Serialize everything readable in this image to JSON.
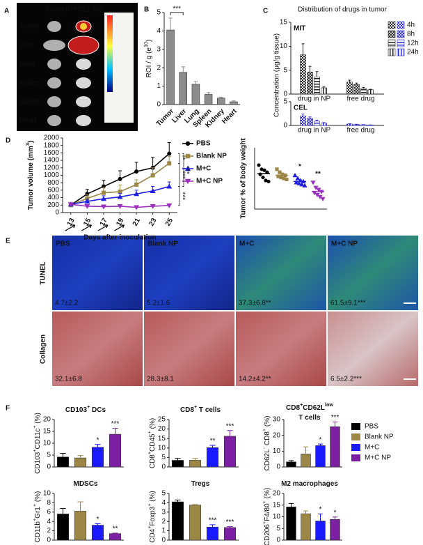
{
  "panel_labels": [
    "A",
    "B",
    "C",
    "D",
    "E",
    "F"
  ],
  "imaging": {
    "columns": [
      "Blank",
      "MIT+CEL NP"
    ],
    "organs": [
      "Tumor",
      "Liver",
      "Lung",
      "Kidney",
      "Spleen",
      "Heart"
    ]
  },
  "micrographs": {
    "columns": [
      "PBS",
      "Blank NP",
      "M+C",
      "M+C NP"
    ],
    "rows": [
      "TUNEL",
      "Collagen"
    ],
    "values": [
      [
        "4.7±2.2",
        "5.2±1.6",
        "37.3±6.8**",
        "61.5±9.1***"
      ],
      [
        "32.1±6.8",
        "28.3±8.1",
        "14.2±4.2**",
        "6.5±2.2***"
      ]
    ]
  },
  "f_legend": {
    "names": [
      "PBS",
      "Blank NP",
      "M+C",
      "M+C NP"
    ],
    "colors": [
      "#000000",
      "#9c8747",
      "#1a1aff",
      "#7d1fa3"
    ]
  },
  "chart_data": [
    {
      "type": "bar",
      "ylabel": [
        {
          "t": "ROI / g (e"
        },
        {
          "sup": "10"
        },
        {
          "t": ")"
        }
      ],
      "categories": [
        "Tumor",
        "Liver",
        "Lung",
        "Spleen",
        "Kidney",
        "Heart"
      ],
      "values": [
        4.05,
        1.75,
        1.1,
        0.55,
        0.35,
        0.15
      ],
      "errors": [
        0.65,
        0.3,
        0.15,
        0.1,
        0.05,
        0.05
      ],
      "color": "#8c8c8c",
      "ylim": [
        0,
        5
      ],
      "yticks": [
        0,
        1,
        2,
        3,
        4,
        5
      ],
      "annotation": "***"
    },
    {
      "type": "grouped_bar",
      "title": "Distribution of drugs in tumor",
      "ylabel": "Concentration (μg/g tissue)",
      "categories": [
        "drug in NP",
        "free drug"
      ],
      "series_names": [
        "4h",
        "8h",
        "12h",
        "24h"
      ],
      "panels": [
        {
          "label": "MIT",
          "color": "#222222",
          "ylim": [
            0,
            15
          ],
          "yticks": [
            0,
            5,
            10,
            15
          ],
          "series": [
            {
              "values": [
                8.2,
                2.5
              ],
              "errors": [
                2.3,
                0.4
              ]
            },
            {
              "values": [
                4.6,
                2.0
              ],
              "errors": [
                1.2,
                0.3
              ]
            },
            {
              "values": [
                3.6,
                1.2
              ],
              "errors": [
                1.1,
                0.2
              ]
            },
            {
              "values": [
                1.3,
                0.9
              ],
              "errors": [
                0.2,
                0.1
              ]
            }
          ]
        },
        {
          "label": "CEL",
          "color": "#2a2ad6",
          "ylim": [
            0,
            5
          ],
          "yticks": [
            0,
            5
          ],
          "series": [
            {
              "values": [
                2.0,
                0.3
              ],
              "errors": [
                0.4,
                0.05
              ]
            },
            {
              "values": [
                1.5,
                0.2
              ],
              "errors": [
                0.3,
                0.05
              ]
            },
            {
              "values": [
                0.9,
                0.15
              ],
              "errors": [
                0.2,
                0.03
              ]
            },
            {
              "values": [
                0.5,
                0.1
              ],
              "errors": [
                0.1,
                0.02
              ]
            }
          ]
        }
      ]
    },
    {
      "type": "line",
      "ylabel": [
        {
          "t": "Tumor volume (mm"
        },
        {
          "sup": "3"
        },
        {
          "t": ")"
        }
      ],
      "xlabel": "Days after inoculation",
      "x": [
        13,
        15,
        17,
        19,
        21,
        23,
        25
      ],
      "xlim": [
        12,
        26
      ],
      "xticks": [
        13,
        15,
        17,
        19,
        21,
        23,
        25
      ],
      "ylim": [
        0,
        2000
      ],
      "yticks": [
        0,
        200,
        400,
        600,
        800,
        1000,
        1200,
        1400,
        1600,
        1800,
        2000
      ],
      "series": [
        {
          "name": "PBS",
          "color": "#000000",
          "marker": "circle",
          "values": [
            200,
            500,
            700,
            900,
            1100,
            1200,
            1580
          ],
          "errors": [
            60,
            120,
            170,
            220,
            250,
            280,
            300
          ]
        },
        {
          "name": "Blank NP",
          "color": "#9c8747",
          "marker": "square",
          "values": [
            200,
            380,
            530,
            560,
            750,
            1000,
            1320
          ],
          "errors": [
            40,
            100,
            150,
            180,
            130,
            200,
            180
          ]
        },
        {
          "name": "M+C",
          "color": "#2020e0",
          "marker": "triangle-up",
          "values": [
            220,
            300,
            370,
            420,
            500,
            580,
            700
          ],
          "errors": [
            40,
            60,
            80,
            90,
            100,
            120,
            120
          ]
        },
        {
          "name": "M+C NP",
          "color": "#9b30c0",
          "marker": "triangle-down",
          "values": [
            220,
            170,
            160,
            170,
            140,
            170,
            190
          ],
          "errors": [
            40,
            30,
            30,
            30,
            30,
            30,
            40
          ]
        }
      ],
      "annotations": [
        "*",
        "***",
        "***",
        "***"
      ]
    },
    {
      "type": "dot_plot",
      "ylabel": "Tumor % of body weight",
      "ylim": [
        0,
        3
      ],
      "groups": [
        {
          "color": "#000000",
          "marker": "circle",
          "values": [
            2.15,
            1.95,
            1.9,
            1.8,
            1.7,
            1.55,
            1.4,
            1.35
          ],
          "mean": 1.73
        },
        {
          "color": "#9c8747",
          "marker": "square",
          "values": [
            1.95,
            1.8,
            1.7,
            1.65,
            1.6,
            1.55,
            1.5,
            1.45
          ],
          "mean": 1.65
        },
        {
          "color": "#2020e0",
          "marker": "triangle-up",
          "values": [
            1.65,
            1.5,
            1.4,
            1.35,
            1.3,
            1.25,
            1.2,
            1.15
          ],
          "mean": 1.35
        },
        {
          "color": "#9b30c0",
          "marker": "triangle-down",
          "values": [
            1.3,
            1.05,
            0.95,
            0.85,
            0.8,
            0.7,
            0.6,
            0.5
          ],
          "mean": 0.85
        }
      ],
      "significance": [
        null,
        null,
        "*",
        "**"
      ]
    },
    {
      "type": "bar",
      "title": [
        [
          {
            "t": "CD103"
          },
          {
            "sup": "+"
          },
          {
            "t": " DCs"
          }
        ]
      ],
      "ylabel": [
        {
          "t": "CD103"
        },
        {
          "sup": "+"
        },
        {
          "t": "CD11c"
        },
        {
          "sup": "+"
        },
        {
          "t": " (%)"
        }
      ],
      "values": [
        4.2,
        3.8,
        8.3,
        13.8
      ],
      "errors": [
        1.5,
        1.0,
        1.2,
        2.5
      ],
      "colors": [
        "#000000",
        "#9c8747",
        "#1a1aff",
        "#7d1fa3"
      ],
      "ylim": [
        0,
        20
      ],
      "yticks": [
        0,
        5,
        10,
        15,
        20
      ],
      "significance": [
        null,
        null,
        "*",
        "***"
      ]
    },
    {
      "type": "bar",
      "title": [
        [
          {
            "t": "CD8"
          },
          {
            "sup": "+"
          },
          {
            "t": " T cells"
          }
        ]
      ],
      "ylabel": [
        {
          "t": "CD8"
        },
        {
          "sup": "+"
        },
        {
          "t": "CD45"
        },
        {
          "sup": "+"
        },
        {
          "t": " (%)"
        }
      ],
      "values": [
        3.5,
        3.5,
        10.2,
        16.2
      ],
      "errors": [
        1.0,
        1.0,
        1.2,
        3.0
      ],
      "colors": [
        "#000000",
        "#9c8747",
        "#1a1aff",
        "#7d1fa3"
      ],
      "ylim": [
        0,
        25
      ],
      "yticks": [
        0,
        5,
        10,
        15,
        20,
        25
      ],
      "significance": [
        null,
        null,
        "**",
        "***"
      ]
    },
    {
      "type": "bar",
      "title": [
        [
          {
            "t": "CD8"
          },
          {
            "sup": "+"
          },
          {
            "t": "CD62L"
          },
          {
            "sup": "low"
          }
        ],
        [
          {
            "t": "T cells"
          }
        ]
      ],
      "ylabel": [
        {
          "t": "CD62L"
        },
        {
          "sup": "-"
        },
        {
          "t": " CD8"
        },
        {
          "sup": "+"
        },
        {
          "t": " (%)"
        }
      ],
      "values": [
        3.2,
        8.2,
        13.5,
        25.5
      ],
      "errors": [
        0.8,
        4.5,
        1.0,
        3.0
      ],
      "colors": [
        "#000000",
        "#9c8747",
        "#1a1aff",
        "#7d1fa3"
      ],
      "ylim": [
        0,
        30
      ],
      "yticks": [
        0,
        10,
        20,
        30
      ],
      "significance": [
        null,
        null,
        "*",
        "***"
      ]
    },
    {
      "type": "bar",
      "title": [
        [
          {
            "t": "MDSCs"
          }
        ]
      ],
      "ylabel": [
        {
          "t": "CD11b"
        },
        {
          "sup": "+"
        },
        {
          "t": "Gr1"
        },
        {
          "sup": "+"
        },
        {
          "t": " (%)"
        }
      ],
      "values": [
        5.6,
        6.2,
        3.2,
        1.4
      ],
      "errors": [
        1.2,
        2.0,
        0.3,
        0.1
      ],
      "colors": [
        "#000000",
        "#9c8747",
        "#1a1aff",
        "#7d1fa3"
      ],
      "ylim": [
        0,
        10
      ],
      "yticks": [
        0,
        2,
        4,
        6,
        8,
        10
      ],
      "significance": [
        null,
        null,
        "*",
        "**"
      ]
    },
    {
      "type": "bar",
      "title": [
        [
          {
            "t": "Tregs"
          }
        ]
      ],
      "ylabel": [
        {
          "t": "CD4"
        },
        {
          "sup": "+"
        },
        {
          "t": "Foxp3"
        },
        {
          "sup": "+"
        },
        {
          "t": " (%)"
        }
      ],
      "values": [
        4.1,
        3.75,
        1.4,
        1.35
      ],
      "errors": [
        0.2,
        0.05,
        0.25,
        0.1
      ],
      "colors": [
        "#000000",
        "#9c8747",
        "#1a1aff",
        "#7d1fa3"
      ],
      "ylim": [
        0,
        5
      ],
      "yticks": [
        0,
        1,
        2,
        3,
        4,
        5
      ],
      "significance": [
        null,
        null,
        "***",
        "***"
      ]
    },
    {
      "type": "bar",
      "title": [
        [
          {
            "t": "M2 macrophages"
          }
        ]
      ],
      "ylabel": [
        {
          "t": "CD206"
        },
        {
          "sup": "+"
        },
        {
          "t": "F4/80"
        },
        {
          "sup": "+"
        },
        {
          "t": " (%)"
        }
      ],
      "values": [
        14.2,
        11.3,
        8.2,
        8.9
      ],
      "errors": [
        1.5,
        1.2,
        3.0,
        1.0
      ],
      "colors": [
        "#000000",
        "#9c8747",
        "#1a1aff",
        "#7d1fa3"
      ],
      "ylim": [
        0,
        20
      ],
      "yticks": [
        0,
        5,
        10,
        15,
        20
      ],
      "significance": [
        null,
        null,
        "*",
        "*"
      ]
    }
  ]
}
